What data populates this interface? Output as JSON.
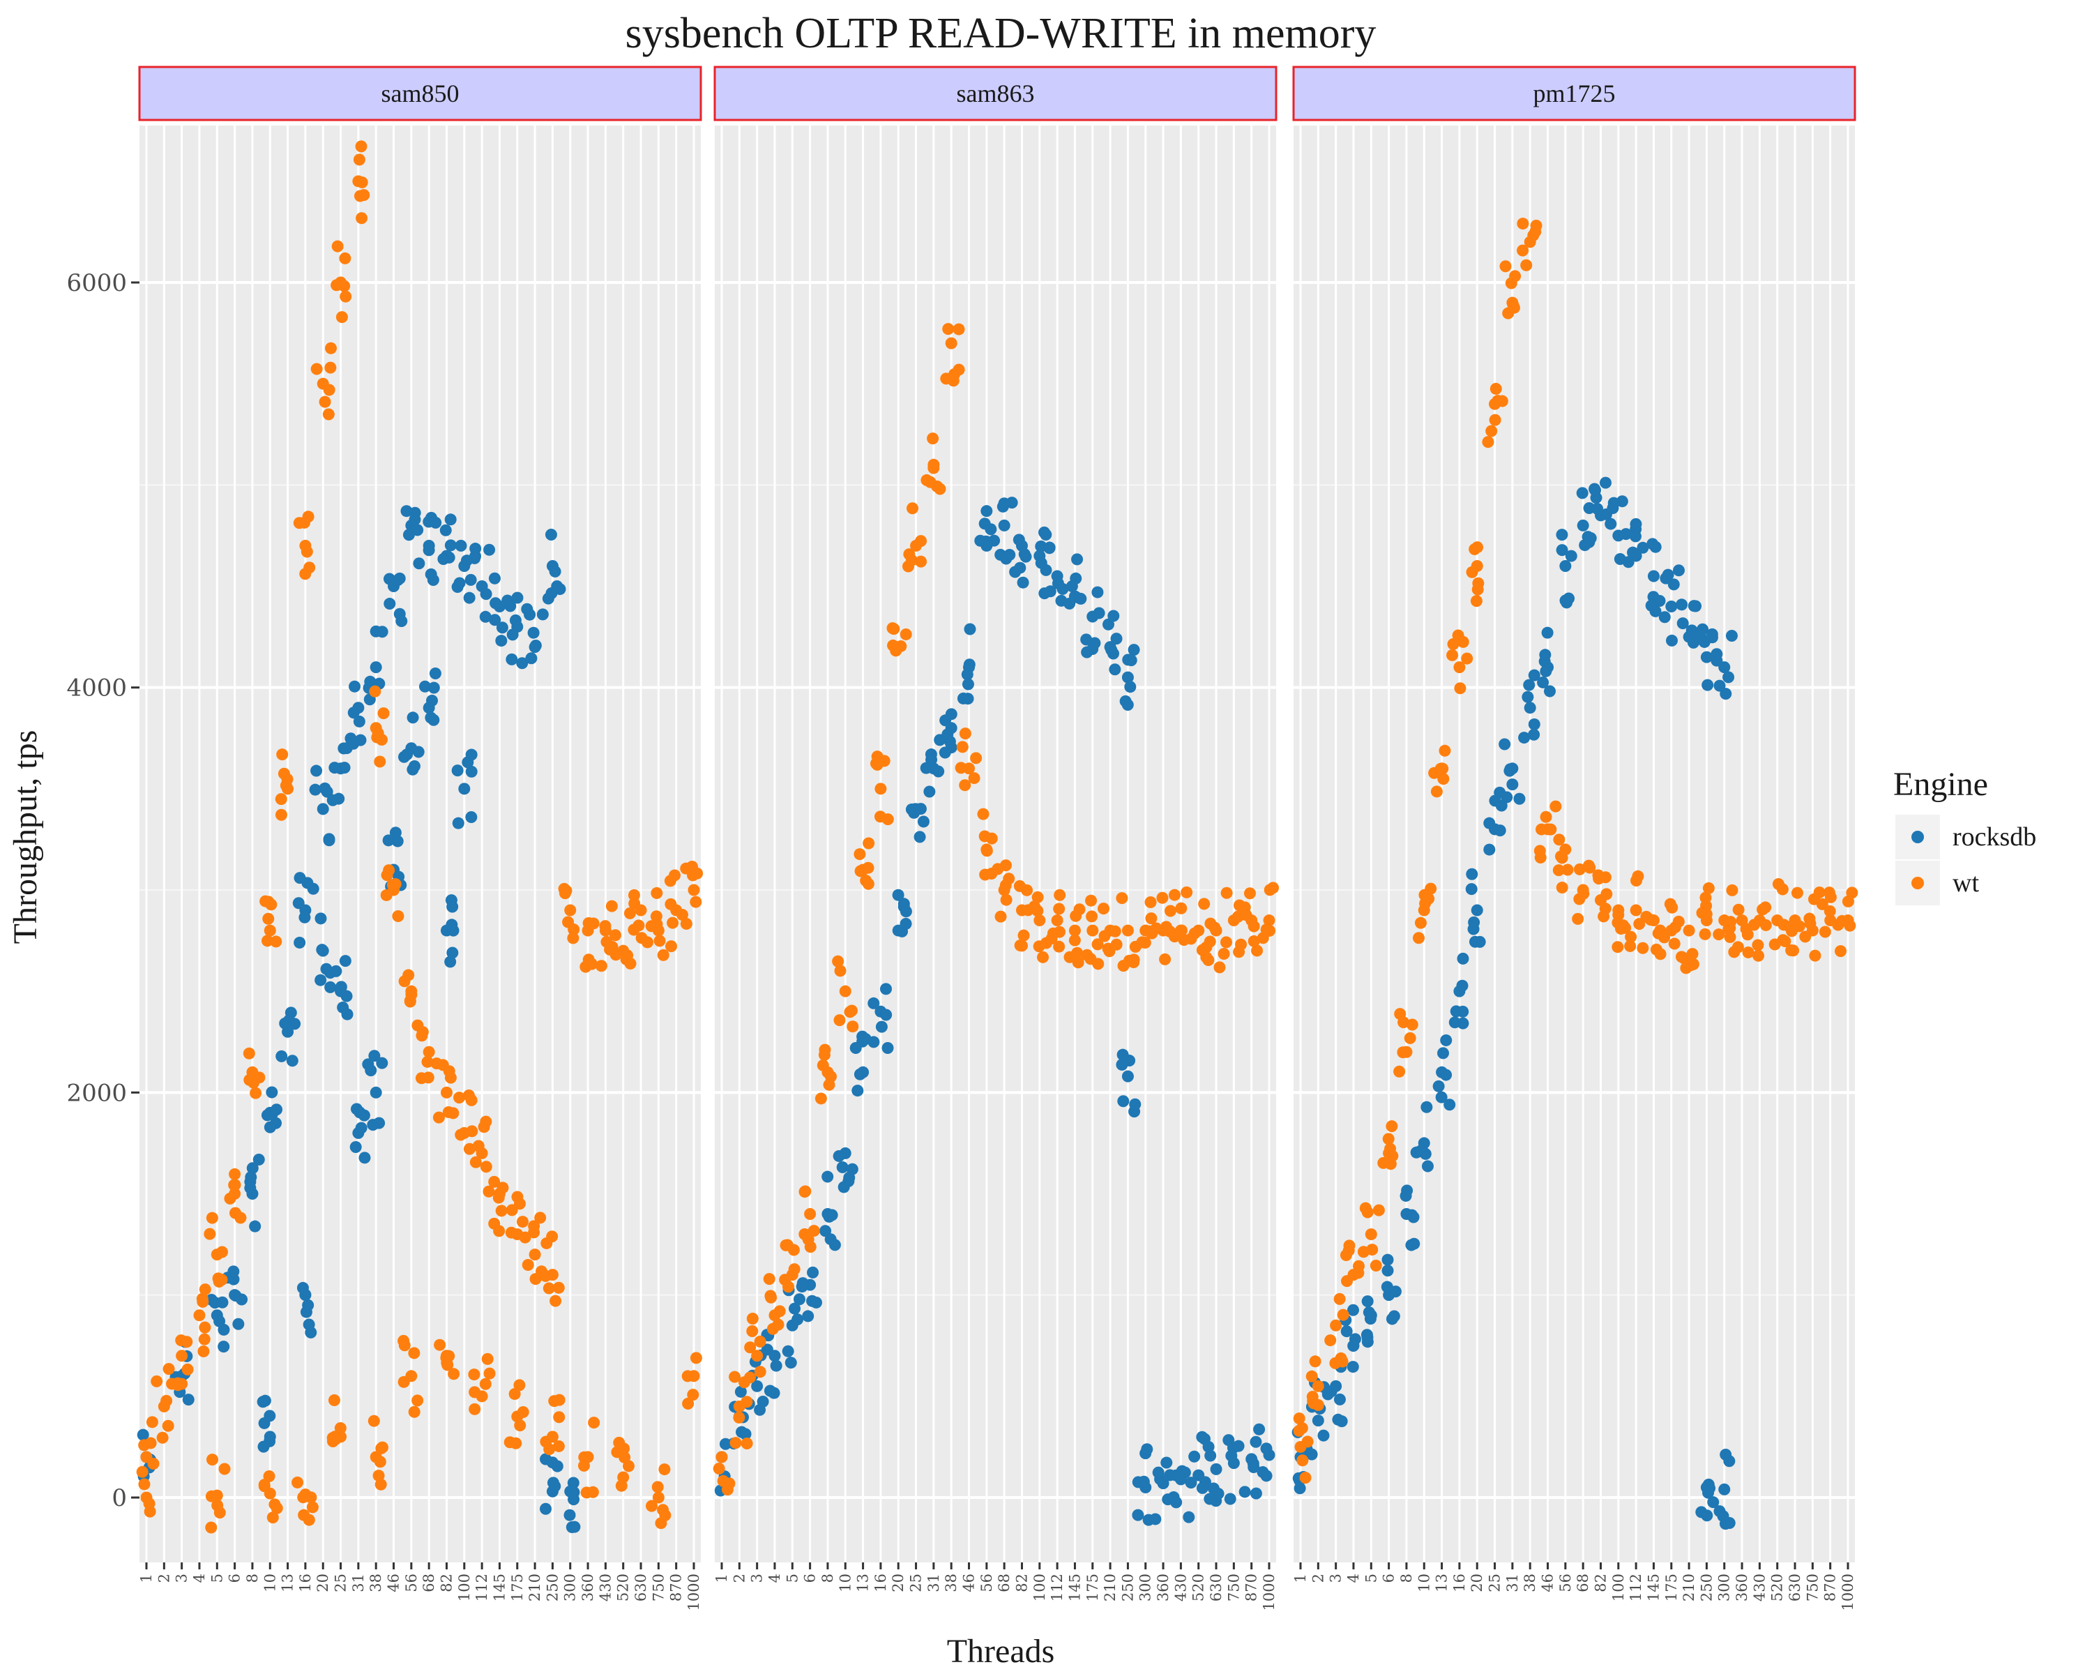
{
  "chart_data": {
    "type": "scatter",
    "title": "sysbench OLTP READ-WRITE in memory",
    "xlabel": "Threads",
    "ylabel": "Throughput, tps",
    "ylim": [
      -300,
      6700
    ],
    "yticks": [
      0,
      2000,
      4000,
      6000
    ],
    "grid": true,
    "legend": {
      "title": "Engine",
      "position": "right"
    },
    "x_categories": [
      "1",
      "2",
      "3",
      "4",
      "5",
      "6",
      "8",
      "10",
      "13",
      "16",
      "20",
      "25",
      "31",
      "38",
      "46",
      "56",
      "68",
      "82",
      "100",
      "112",
      "145",
      "175",
      "210",
      "250",
      "300",
      "360",
      "430",
      "520",
      "630",
      "750",
      "870",
      "1000"
    ],
    "facets": [
      {
        "name": "sam850",
        "series": [
          {
            "name": "rocksdb",
            "color": "#1f77b4",
            "points": [
              [
                1,
                200
              ],
              [
                3,
                600
              ],
              [
                5,
                900
              ],
              [
                6,
                1000
              ],
              [
                8,
                1500
              ],
              [
                10,
                1900
              ],
              [
                13,
                2300
              ],
              [
                16,
                2900
              ],
              [
                20,
                3400
              ],
              [
                25,
                3600
              ],
              [
                31,
                3900
              ],
              [
                38,
                4100
              ],
              [
                46,
                4500
              ],
              [
                56,
                4800
              ],
              [
                68,
                4700
              ],
              [
                82,
                4650
              ],
              [
                100,
                4600
              ],
              [
                112,
                4500
              ],
              [
                145,
                4400
              ],
              [
                175,
                4300
              ],
              [
                210,
                4200
              ],
              [
                250,
                4600
              ],
              [
                16,
                1000
              ],
              [
                20,
                2700
              ],
              [
                25,
                2500
              ],
              [
                31,
                1800
              ],
              [
                38,
                2000
              ],
              [
                46,
                3100
              ],
              [
                56,
                3700
              ],
              [
                68,
                3900
              ],
              [
                82,
                2800
              ],
              [
                100,
                3500
              ],
              [
                10,
                300
              ],
              [
                300,
                30
              ],
              [
                250,
                30
              ]
            ]
          },
          {
            "name": "wt",
            "color": "#ff7f0e",
            "points": [
              [
                1,
                200
              ],
              [
                2,
                450
              ],
              [
                3,
                700
              ],
              [
                4,
                900
              ],
              [
                5,
                1200
              ],
              [
                6,
                1500
              ],
              [
                8,
                2100
              ],
              [
                10,
                2800
              ],
              [
                13,
                3500
              ],
              [
                16,
                4700
              ],
              [
                20,
                5500
              ],
              [
                25,
                6000
              ],
              [
                31,
                6500
              ],
              [
                38,
                3800
              ],
              [
                46,
                3000
              ],
              [
                56,
                2500
              ],
              [
                68,
                2200
              ],
              [
                82,
                2000
              ],
              [
                100,
                1800
              ],
              [
                112,
                1700
              ],
              [
                145,
                1500
              ],
              [
                175,
                1300
              ],
              [
                210,
                1200
              ],
              [
                250,
                1100
              ],
              [
                300,
                2900
              ],
              [
                360,
                2800
              ],
              [
                430,
                2800
              ],
              [
                520,
                2700
              ],
              [
                630,
                2900
              ],
              [
                750,
                2800
              ],
              [
                870,
                2900
              ],
              [
                1000,
                3000
              ],
              [
                1,
                0
              ],
              [
                5,
                10
              ],
              [
                10,
                20
              ],
              [
                16,
                15
              ],
              [
                25,
                300
              ],
              [
                38,
                200
              ],
              [
                56,
                600
              ],
              [
                82,
                700
              ],
              [
                112,
                500
              ],
              [
                175,
                400
              ],
              [
                250,
                300
              ],
              [
                360,
                200
              ],
              [
                520,
                100
              ],
              [
                750,
                0
              ],
              [
                1000,
                600
              ]
            ]
          }
        ]
      },
      {
        "name": "sam863",
        "series": [
          {
            "name": "rocksdb",
            "color": "#1f77b4",
            "points": [
              [
                1,
                200
              ],
              [
                2,
                400
              ],
              [
                3,
                550
              ],
              [
                4,
                700
              ],
              [
                5,
                850
              ],
              [
                6,
                1050
              ],
              [
                8,
                1400
              ],
              [
                10,
                1700
              ],
              [
                13,
                2100
              ],
              [
                16,
                2400
              ],
              [
                20,
                2800
              ],
              [
                25,
                3400
              ],
              [
                31,
                3600
              ],
              [
                38,
                3800
              ],
              [
                46,
                4100
              ],
              [
                56,
                4700
              ],
              [
                68,
                4800
              ],
              [
                82,
                4700
              ],
              [
                100,
                4650
              ],
              [
                112,
                4550
              ],
              [
                145,
                4450
              ],
              [
                175,
                4350
              ],
              [
                210,
                4200
              ],
              [
                250,
                4050
              ],
              [
                250,
                2080
              ],
              [
                300,
                50
              ],
              [
                360,
                70
              ],
              [
                430,
                90
              ],
              [
                520,
                110
              ],
              [
                630,
                140
              ],
              [
                750,
                170
              ],
              [
                870,
                190
              ],
              [
                1000,
                210
              ]
            ]
          },
          {
            "name": "wt",
            "color": "#ff7f0e",
            "points": [
              [
                1,
                200
              ],
              [
                2,
                450
              ],
              [
                3,
                700
              ],
              [
                4,
                900
              ],
              [
                5,
                1100
              ],
              [
                6,
                1400
              ],
              [
                8,
                2100
              ],
              [
                10,
                2500
              ],
              [
                13,
                3100
              ],
              [
                16,
                3500
              ],
              [
                20,
                4200
              ],
              [
                25,
                4700
              ],
              [
                31,
                5100
              ],
              [
                38,
                5700
              ],
              [
                46,
                3600
              ],
              [
                56,
                3200
              ],
              [
                68,
                3000
              ],
              [
                82,
                2900
              ],
              [
                100,
                2850
              ],
              [
                112,
                2850
              ],
              [
                145,
                2800
              ],
              [
                175,
                2800
              ],
              [
                210,
                2800
              ],
              [
                250,
                2800
              ],
              [
                300,
                2800
              ],
              [
                360,
                2800
              ],
              [
                430,
                2800
              ],
              [
                520,
                2800
              ],
              [
                630,
                2800
              ],
              [
                750,
                2850
              ],
              [
                870,
                2850
              ],
              [
                1000,
                2850
              ]
            ]
          }
        ]
      },
      {
        "name": "pm1725",
        "series": [
          {
            "name": "rocksdb",
            "color": "#1f77b4",
            "points": [
              [
                1,
                200
              ],
              [
                2,
                380
              ],
              [
                3,
                550
              ],
              [
                4,
                750
              ],
              [
                5,
                900
              ],
              [
                6,
                1000
              ],
              [
                8,
                1400
              ],
              [
                10,
                1750
              ],
              [
                13,
                2100
              ],
              [
                16,
                2500
              ],
              [
                20,
                2900
              ],
              [
                25,
                3300
              ],
              [
                31,
                3600
              ],
              [
                38,
                3900
              ],
              [
                46,
                4100
              ],
              [
                56,
                4600
              ],
              [
                68,
                4800
              ],
              [
                82,
                4850
              ],
              [
                100,
                4750
              ],
              [
                112,
                4650
              ],
              [
                145,
                4550
              ],
              [
                175,
                4400
              ],
              [
                210,
                4250
              ],
              [
                250,
                4150
              ],
              [
                300,
                4100
              ],
              [
                250,
                50
              ],
              [
                300,
                40
              ]
            ]
          },
          {
            "name": "wt",
            "color": "#ff7f0e",
            "points": [
              [
                1,
                250
              ],
              [
                2,
                550
              ],
              [
                3,
                850
              ],
              [
                4,
                1100
              ],
              [
                5,
                1300
              ],
              [
                6,
                1700
              ],
              [
                8,
                2200
              ],
              [
                10,
                2900
              ],
              [
                13,
                3600
              ],
              [
                16,
                4100
              ],
              [
                20,
                4600
              ],
              [
                25,
                5400
              ],
              [
                31,
                5900
              ],
              [
                38,
                6200
              ],
              [
                46,
                3300
              ],
              [
                56,
                3200
              ],
              [
                68,
                3000
              ],
              [
                82,
                2950
              ],
              [
                100,
                2900
              ],
              [
                112,
                2900
              ],
              [
                145,
                2850
              ],
              [
                175,
                2800
              ],
              [
                210,
                2800
              ],
              [
                250,
                2850
              ],
              [
                300,
                2850
              ],
              [
                360,
                2850
              ],
              [
                430,
                2850
              ],
              [
                520,
                2850
              ],
              [
                630,
                2850
              ],
              [
                750,
                2800
              ],
              [
                870,
                2850
              ],
              [
                1000,
                2850
              ]
            ]
          }
        ]
      }
    ]
  }
}
